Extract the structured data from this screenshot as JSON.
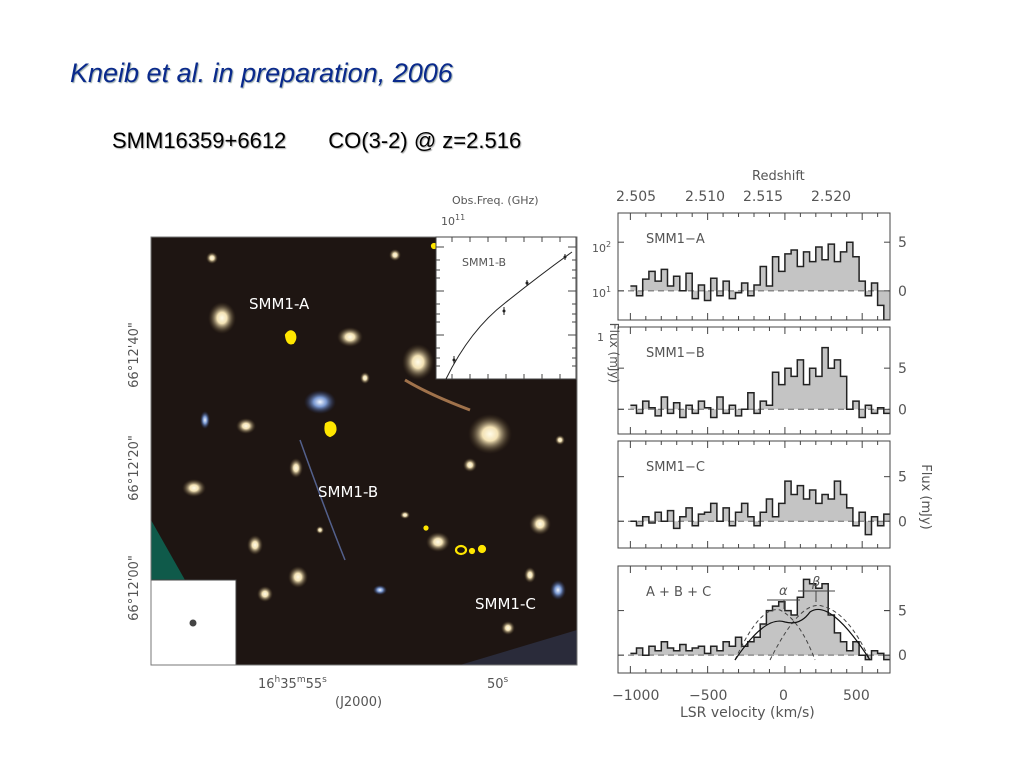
{
  "slide": {
    "title": "Kneib et al. in preparation, 2006",
    "source": "SMM16359+6612",
    "line": "CO(3-2) @ z=2.516"
  },
  "image_panel": {
    "labels": [
      "SMM1-A",
      "SMM1-B",
      "SMM1-C"
    ],
    "dec_ticks": [
      "66°12'40\"",
      "66°12'20\"",
      "66°12'00\""
    ],
    "ra_tick_1": "16h35m55s",
    "ra_tick_2": "50s",
    "epoch": "(J2000)"
  },
  "inset": {
    "label": "SMM1-B",
    "top_axis_title": "Obs.Freq. (GHz)",
    "top_axis_tick": "10^11",
    "y_ticks": [
      "10^2",
      "10^1",
      "1"
    ],
    "y_label": "Flux (mJy)"
  },
  "spectra": {
    "top_axis_title": "Redshift",
    "redshift_ticks": [
      "2.505",
      "2.510",
      "2.515",
      "2.520"
    ],
    "x_ticks": [
      "−1000",
      "−500",
      "0",
      "500"
    ],
    "x_label": "LSR velocity (km/s)",
    "y_label": "Flux (mJy)",
    "y_tick_5": "5",
    "y_tick_0": "0",
    "panels": [
      "SMM1−A",
      "SMM1−B",
      "SMM1−C",
      "A + B + C"
    ],
    "alpha": "α",
    "beta": "β"
  },
  "chart_data": {
    "type": "bar",
    "xlabel": "LSR velocity (km/s)",
    "ylabel": "Flux (mJy)",
    "xlim": [
      -1080,
      680
    ],
    "series": [
      {
        "name": "SMM1−A",
        "x_start": -1000,
        "step": 40,
        "ylim": [
          -3,
          8
        ],
        "values": [
          0.5,
          -0.5,
          1.2,
          2.0,
          1.0,
          2.2,
          0.5,
          1.5,
          0.0,
          1.8,
          -0.8,
          0.6,
          -1.0,
          1.3,
          -0.5,
          1.0,
          -0.8,
          -0.2,
          0.8,
          -0.5,
          0.6,
          2.5,
          0.5,
          3.5,
          2.0,
          3.8,
          4.2,
          2.5,
          4.0,
          3.0,
          4.5,
          3.2,
          4.8,
          3.0,
          4.0,
          5.0,
          3.5,
          1.0,
          -0.5,
          0.8,
          -1.5,
          -3.0
        ]
      },
      {
        "name": "SMM1−B",
        "x_start": -1000,
        "step": 40,
        "ylim": [
          -3,
          10
        ],
        "values": [
          0.5,
          -0.5,
          1.0,
          0.2,
          -0.8,
          1.5,
          -0.5,
          0.8,
          -1.0,
          0.5,
          -0.5,
          1.0,
          0.2,
          -1.0,
          1.5,
          -0.5,
          0.5,
          -0.8,
          0.0,
          2.0,
          -0.5,
          1.0,
          0.5,
          4.5,
          3.0,
          5.0,
          4.0,
          6.0,
          3.0,
          5.0,
          4.0,
          7.5,
          5.0,
          6.0,
          4.0,
          0.0,
          1.0,
          -1.0,
          0.5,
          -0.5,
          0.2,
          -0.5
        ]
      },
      {
        "name": "SMM1−C",
        "x_start": -1000,
        "step": 40,
        "ylim": [
          -3,
          9
        ],
        "values": [
          0.0,
          -0.5,
          0.5,
          -0.2,
          1.0,
          0.0,
          1.2,
          -0.8,
          0.5,
          1.5,
          -0.5,
          0.8,
          1.0,
          2.0,
          0.0,
          1.5,
          -0.5,
          1.0,
          2.0,
          0.5,
          -0.5,
          1.0,
          2.5,
          0.5,
          2.0,
          4.5,
          3.0,
          4.0,
          2.5,
          3.5,
          2.0,
          3.0,
          2.5,
          4.5,
          3.0,
          1.5,
          -0.5,
          1.0,
          -1.5,
          0.5,
          -0.5,
          0.8
        ]
      },
      {
        "name": "A + B + C",
        "x_start": -1000,
        "step": 40,
        "ylim": [
          -2,
          10
        ],
        "values": [
          0.2,
          0.8,
          0.0,
          1.0,
          0.5,
          1.5,
          0.8,
          0.5,
          1.2,
          0.5,
          0.8,
          1.0,
          0.2,
          1.0,
          0.5,
          1.5,
          1.0,
          2.0,
          1.0,
          1.5,
          2.0,
          3.5,
          5.0,
          5.5,
          6.0,
          5.0,
          4.5,
          6.5,
          8.5,
          8.0,
          7.5,
          8.0,
          4.5,
          2.5,
          1.5,
          0.5,
          1.5,
          0.0,
          -0.5,
          0.5,
          0.2,
          -0.5
        ]
      }
    ]
  }
}
